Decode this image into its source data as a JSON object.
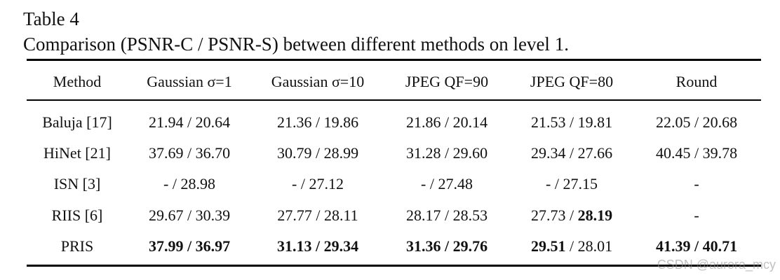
{
  "header": {
    "label": "Table 4",
    "caption": "Comparison (PSNR-C / PSNR-S) between different methods on level 1."
  },
  "table": {
    "columns": [
      "Method",
      "Gaussian σ=1",
      "Gaussian σ=10",
      "JPEG QF=90",
      "JPEG QF=80",
      "Round"
    ],
    "rows": [
      {
        "method": "Baluja [17]",
        "cells": [
          {
            "parts": [
              "21.94",
              " / ",
              "20.64"
            ]
          },
          {
            "parts": [
              "21.36",
              " / ",
              "19.86"
            ]
          },
          {
            "parts": [
              "21.86",
              " / ",
              "20.14"
            ]
          },
          {
            "parts": [
              "21.53",
              " / ",
              "19.81"
            ]
          },
          {
            "parts": [
              "22.05",
              " / ",
              "20.68"
            ]
          }
        ]
      },
      {
        "method": "HiNet [21]",
        "cells": [
          {
            "parts": [
              "37.69",
              " / ",
              "36.70"
            ]
          },
          {
            "parts": [
              "30.79",
              " / ",
              "28.99"
            ]
          },
          {
            "parts": [
              "31.28",
              " / ",
              "29.60"
            ]
          },
          {
            "parts": [
              "29.34",
              " / ",
              "27.66"
            ]
          },
          {
            "parts": [
              "40.45",
              " / ",
              "39.78"
            ]
          }
        ]
      },
      {
        "method": "ISN [3]",
        "cells": [
          {
            "parts": [
              "-",
              " / ",
              "28.98"
            ]
          },
          {
            "parts": [
              "-",
              " / ",
              "27.12"
            ]
          },
          {
            "parts": [
              "-",
              " / ",
              "27.48"
            ]
          },
          {
            "parts": [
              "-",
              " / ",
              "27.15"
            ]
          },
          {
            "parts": [
              "-"
            ]
          }
        ]
      },
      {
        "method": "RIIS [6]",
        "cells": [
          {
            "parts": [
              "29.67",
              " / ",
              "30.39"
            ]
          },
          {
            "parts": [
              "27.77",
              " / ",
              "28.11"
            ]
          },
          {
            "parts": [
              "28.17",
              " / ",
              "28.53"
            ]
          },
          {
            "parts": [
              "27.73",
              " / ",
              "28.19"
            ],
            "bold": [
              2
            ]
          },
          {
            "parts": [
              "-"
            ]
          }
        ]
      },
      {
        "method": "PRIS",
        "cells": [
          {
            "parts": [
              "37.99",
              " / ",
              "36.97"
            ],
            "bold": [
              0,
              1,
              2
            ]
          },
          {
            "parts": [
              "31.13",
              " / ",
              "29.34"
            ],
            "bold": [
              0,
              1,
              2
            ]
          },
          {
            "parts": [
              "31.36",
              " / ",
              "29.76"
            ],
            "bold": [
              0,
              1,
              2
            ]
          },
          {
            "parts": [
              "29.51",
              " / ",
              "28.01"
            ],
            "bold": [
              0
            ]
          },
          {
            "parts": [
              "41.39",
              " / ",
              "40.71"
            ],
            "bold": [
              0,
              1,
              2
            ]
          }
        ]
      }
    ]
  },
  "watermark": "CSDN @aurora_mcy"
}
